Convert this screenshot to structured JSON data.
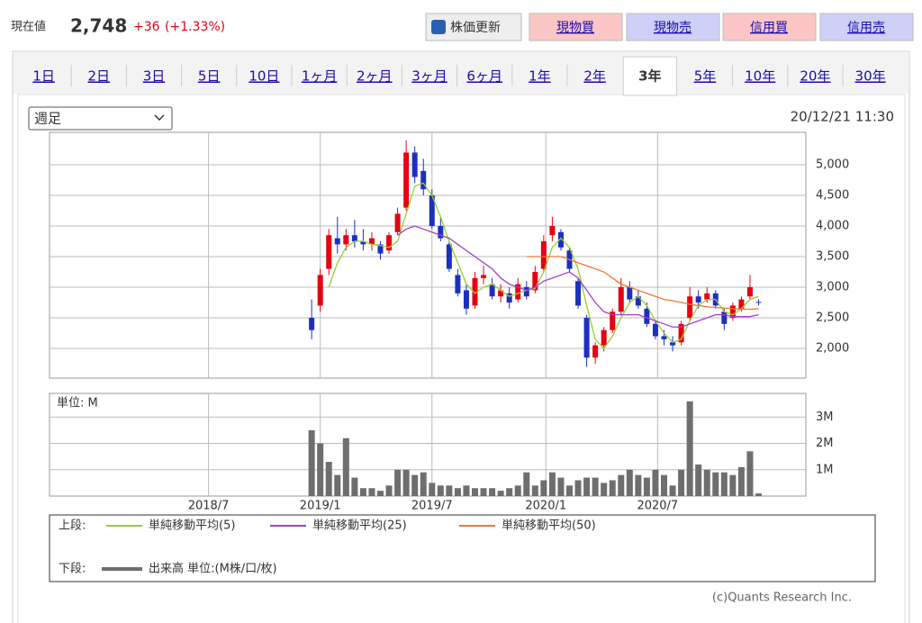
{
  "header": {
    "label": "現在値",
    "price": "2,748",
    "change": "+36",
    "change_pct": "(+1.33%)",
    "refresh": "株価更新",
    "buttons": [
      "現物買",
      "現物売",
      "信用買",
      "信用売"
    ]
  },
  "tabs": {
    "items": [
      "1日",
      "2日",
      "3日",
      "5日",
      "10日",
      "1ヶ月",
      "2ヶ月",
      "3ヶ月",
      "6ヶ月",
      "1年",
      "2年",
      "3年",
      "5年",
      "10年",
      "20年",
      "30年"
    ],
    "active": 11
  },
  "select": "週足",
  "timestamp": "20/12/21 11:30",
  "legend": {
    "upper": "上段:",
    "lower": "下段:"
  },
  "copyright": "(c)Quants Research Inc.",
  "chart_data": [
    {
      "type": "candlestick",
      "xlim": [
        0,
        176
      ],
      "ylim": [
        1515,
        5530
      ],
      "yticks": [
        {
          "value": 2000,
          "label": "2,000"
        },
        {
          "value": 2500,
          "label": "2,500"
        },
        {
          "value": 3000,
          "label": "3,000"
        },
        {
          "value": 3500,
          "label": "3,500"
        },
        {
          "value": 4000,
          "label": "4,000"
        },
        {
          "value": 4500,
          "label": "4,500"
        },
        {
          "value": 5000,
          "label": "5,000"
        }
      ],
      "up_color": "#e60012",
      "down_color": "#1d2fbf",
      "grid": true,
      "x": [
        61,
        63,
        65,
        67,
        69,
        71,
        73,
        75,
        77,
        79,
        81,
        83,
        85,
        87,
        89,
        91,
        93,
        95,
        97,
        99,
        101,
        103,
        105,
        107,
        109,
        111,
        113,
        115,
        117,
        119,
        121,
        123,
        125,
        127,
        129,
        131,
        133,
        135,
        137,
        139,
        141,
        143,
        145,
        147,
        149,
        151,
        153,
        155,
        157,
        159,
        161,
        163,
        165
      ],
      "open": [
        2500,
        2700,
        3300,
        3800,
        3700,
        3850,
        3750,
        3700,
        3700,
        3600,
        3900,
        4300,
        5200,
        4900,
        4500,
        4000,
        3700,
        3200,
        2950,
        2700,
        3150,
        3050,
        2850,
        2900,
        2800,
        3000,
        2950,
        3300,
        3850,
        3900,
        3600,
        3100,
        2500,
        1850,
        2050,
        2300,
        2600,
        3000,
        2850,
        2650,
        2400,
        2200,
        2100,
        2100,
        2500,
        2850,
        2800,
        2900,
        2600,
        2500,
        2650,
        2850,
        2760
      ],
      "high": [
        2800,
        3300,
        3950,
        4150,
        3950,
        4100,
        3950,
        3900,
        3750,
        3900,
        4300,
        5400,
        5300,
        5100,
        4600,
        4150,
        3750,
        3300,
        3050,
        3250,
        3350,
        3150,
        3050,
        3000,
        3150,
        3100,
        3350,
        3850,
        4150,
        3950,
        3650,
        3150,
        2550,
        2100,
        2350,
        2650,
        3150,
        3100,
        2950,
        2750,
        2450,
        2300,
        2200,
        2450,
        3000,
        2950,
        3000,
        2950,
        2650,
        2750,
        2850,
        3200,
        2800
      ],
      "low": [
        2150,
        2600,
        3200,
        3550,
        3600,
        3650,
        3600,
        3600,
        3450,
        3550,
        3850,
        4250,
        4700,
        4500,
        3950,
        3750,
        3250,
        2850,
        2550,
        2650,
        3050,
        2800,
        2750,
        2650,
        2750,
        2800,
        2900,
        3250,
        3750,
        3600,
        3250,
        2650,
        1700,
        1750,
        1950,
        2250,
        2550,
        2750,
        2650,
        2350,
        2150,
        2050,
        1950,
        2050,
        2450,
        2650,
        2750,
        2650,
        2300,
        2450,
        2600,
        2800,
        2700
      ],
      "close": [
        2300,
        3200,
        3850,
        3700,
        3850,
        3750,
        3700,
        3800,
        3550,
        3850,
        4200,
        5200,
        4800,
        4600,
        4000,
        3800,
        3300,
        2900,
        2650,
        3150,
        3200,
        2850,
        2950,
        2750,
        3050,
        2850,
        3250,
        3750,
        4000,
        3650,
        3300,
        2700,
        1850,
        2050,
        2300,
        2600,
        3000,
        2800,
        2700,
        2400,
        2200,
        2150,
        2050,
        2400,
        2850,
        2750,
        2900,
        2700,
        2400,
        2700,
        2800,
        3000,
        2748
      ],
      "series": [
        {
          "name": "単純移動平均(5)",
          "color": "#9acd32",
          "values": [
            null,
            null,
            3000,
            3400,
            3650,
            3750,
            3750,
            3700,
            3680,
            3650,
            3750,
            4200,
            4650,
            4700,
            4500,
            4150,
            3750,
            3400,
            3050,
            2900,
            3000,
            3050,
            2950,
            2850,
            2900,
            2950,
            2980,
            3250,
            3650,
            3800,
            3650,
            3300,
            2700,
            2150,
            2000,
            2200,
            2500,
            2750,
            2850,
            2700,
            2450,
            2250,
            2100,
            2150,
            2450,
            2700,
            2800,
            2800,
            2600,
            2550,
            2650,
            2800,
            2850
          ]
        },
        {
          "name": "単純移動平均(25)",
          "color": "#a040d0",
          "values": [
            null,
            null,
            null,
            null,
            null,
            null,
            null,
            null,
            null,
            null,
            3850,
            3950,
            4000,
            3950,
            3900,
            3850,
            3800,
            3700,
            3600,
            3500,
            3400,
            3300,
            3150,
            3050,
            3000,
            2950,
            3000,
            3100,
            3150,
            3200,
            3250,
            3150,
            2950,
            2750,
            2600,
            2550,
            2550,
            2550,
            2550,
            2500,
            2450,
            2400,
            2350,
            2350,
            2400,
            2450,
            2500,
            2550,
            2550,
            2520,
            2520,
            2520,
            2550
          ]
        },
        {
          "name": "単純移動平均(50)",
          "color": "#f07830",
          "values": [
            null,
            null,
            null,
            null,
            null,
            null,
            null,
            null,
            null,
            null,
            null,
            null,
            null,
            null,
            null,
            null,
            null,
            null,
            null,
            null,
            null,
            null,
            null,
            null,
            null,
            3500,
            3500,
            3500,
            3500,
            3500,
            3450,
            3400,
            3350,
            3300,
            3250,
            3150,
            3050,
            3000,
            2950,
            2900,
            2850,
            2800,
            2780,
            2750,
            2720,
            2700,
            2680,
            2670,
            2660,
            2650,
            2640,
            2640,
            2650
          ]
        }
      ]
    },
    {
      "type": "bar",
      "unit": "単位: M",
      "xlim": [
        0,
        176
      ],
      "ylim": [
        0,
        3.9
      ],
      "yticks": [
        {
          "value": 1,
          "label": "1M"
        },
        {
          "value": 2,
          "label": "2M"
        },
        {
          "value": 3,
          "label": "3M"
        }
      ],
      "xticks": [
        {
          "value": 37,
          "label": "2018/7"
        },
        {
          "value": 63,
          "label": "2019/1"
        },
        {
          "value": 89,
          "label": "2019/7"
        },
        {
          "value": 115.5,
          "label": "2020/1"
        },
        {
          "value": 141.5,
          "label": "2020/7"
        }
      ],
      "x": [
        61,
        63,
        65,
        67,
        69,
        71,
        73,
        75,
        77,
        79,
        81,
        83,
        85,
        87,
        89,
        91,
        93,
        95,
        97,
        99,
        101,
        103,
        105,
        107,
        109,
        111,
        113,
        115,
        117,
        119,
        121,
        123,
        125,
        127,
        129,
        131,
        133,
        135,
        137,
        139,
        141,
        143,
        145,
        147,
        149,
        151,
        153,
        155,
        157,
        159,
        161,
        163,
        165
      ],
      "series": [
        {
          "name": "出来高 単位:(M株/口/枚)",
          "color": "#6e6e6e",
          "values": [
            2.5,
            2.0,
            1.3,
            0.8,
            2.2,
            0.7,
            0.3,
            0.3,
            0.2,
            0.4,
            1.0,
            1.0,
            0.8,
            0.9,
            0.5,
            0.4,
            0.4,
            0.3,
            0.4,
            0.3,
            0.3,
            0.3,
            0.2,
            0.3,
            0.4,
            0.9,
            0.4,
            0.6,
            0.9,
            0.7,
            0.4,
            0.6,
            0.7,
            0.7,
            0.5,
            0.6,
            0.8,
            1.0,
            0.8,
            0.7,
            1.0,
            0.8,
            0.4,
            1.0,
            3.6,
            1.2,
            1.0,
            0.9,
            0.9,
            0.8,
            1.1,
            1.7,
            0.1
          ]
        }
      ]
    }
  ]
}
